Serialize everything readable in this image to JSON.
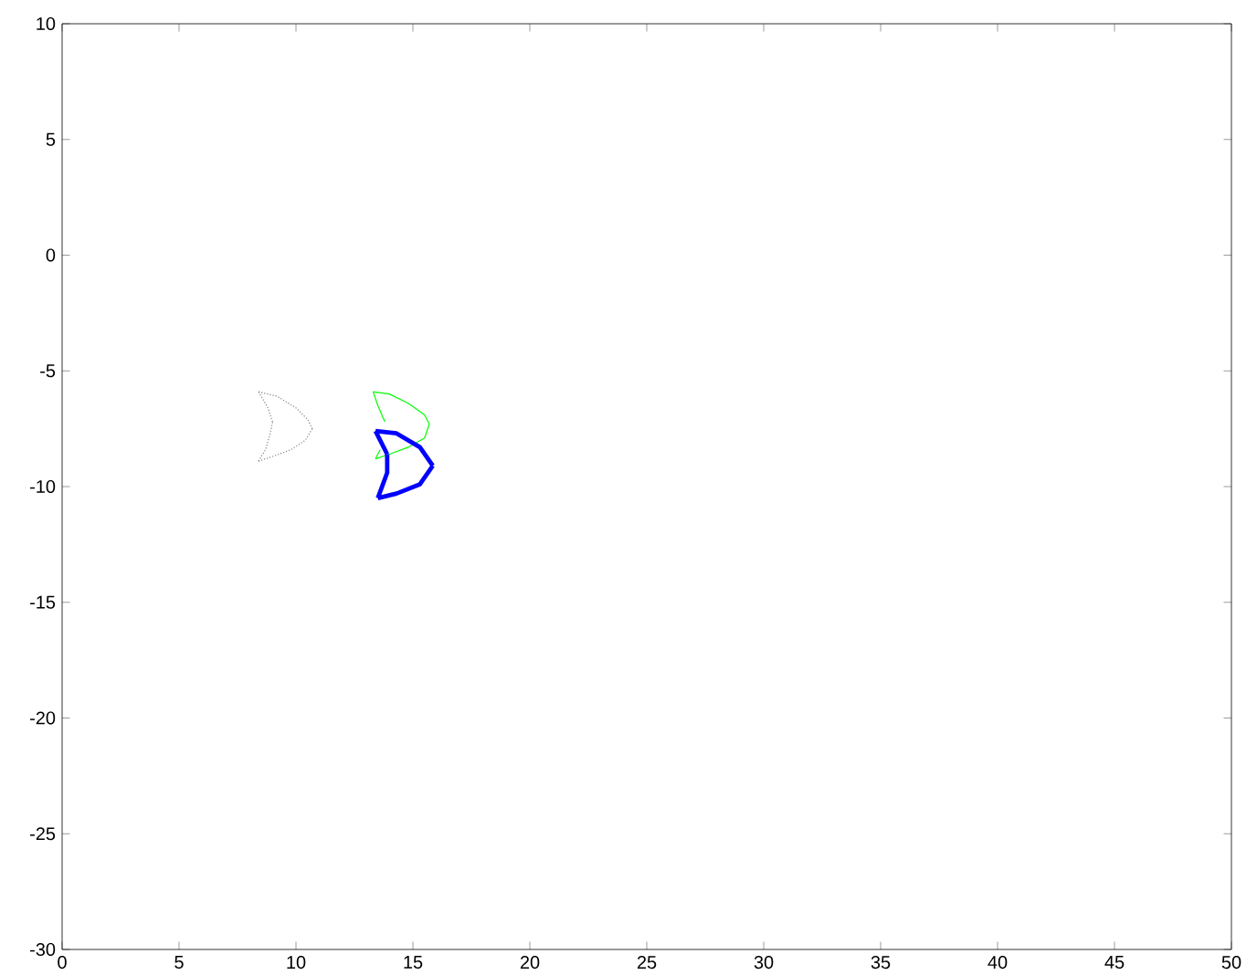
{
  "chart_data": {
    "type": "line",
    "xlim": [
      0,
      50
    ],
    "ylim": [
      -30,
      10
    ],
    "xticks": [
      0,
      5,
      10,
      15,
      20,
      25,
      30,
      35,
      40,
      45,
      50
    ],
    "yticks": [
      -30,
      -25,
      -20,
      -15,
      -10,
      -5,
      0,
      5,
      10
    ],
    "grid": false,
    "marker": "none",
    "series": [
      {
        "color": "#808080",
        "line_style": "dotted",
        "x": [
          8.4,
          9.2,
          10.0,
          10.5,
          10.7
        ],
        "values": [
          -5.9,
          -6.1,
          -6.6,
          -7.1,
          -7.5
        ]
      },
      {
        "color": "#808080",
        "line_style": "dotted",
        "x": [
          10.7,
          10.4,
          9.8,
          9.0,
          8.4
        ],
        "values": [
          -7.5,
          -8.0,
          -8.4,
          -8.7,
          -8.9
        ]
      },
      {
        "color": "#808080",
        "line_style": "dotted",
        "x": [
          8.4,
          8.7,
          8.9,
          9.0
        ],
        "values": [
          -8.9,
          -8.4,
          -7.7,
          -7.2
        ]
      },
      {
        "color": "#808080",
        "line_style": "dotted",
        "x": [
          9.0,
          8.8,
          8.4
        ],
        "values": [
          -7.2,
          -6.6,
          -5.9
        ]
      },
      {
        "color": "#00ff00",
        "line_style": "solid",
        "x": [
          13.3,
          14.0,
          14.8,
          15.5,
          15.7
        ],
        "values": [
          -5.9,
          -6.0,
          -6.4,
          -6.9,
          -7.3
        ]
      },
      {
        "color": "#00ff00",
        "line_style": "solid",
        "x": [
          15.7,
          15.5,
          14.8,
          14.0,
          13.4
        ],
        "values": [
          -7.3,
          -7.9,
          -8.3,
          -8.6,
          -8.8
        ]
      },
      {
        "color": "#00ff00",
        "line_style": "solid",
        "x": [
          13.4,
          13.6
        ],
        "values": [
          -8.8,
          -8.4
        ]
      },
      {
        "color": "#00ff00",
        "line_style": "solid",
        "x": [
          13.8,
          13.5,
          13.3
        ],
        "values": [
          -7.2,
          -6.5,
          -5.9
        ]
      },
      {
        "color": "#0000ff",
        "line_style": "solid",
        "x": [
          13.4,
          14.3,
          15.3,
          15.85
        ],
        "values": [
          -7.6,
          -7.7,
          -8.3,
          -9.1
        ]
      },
      {
        "color": "#0000ff",
        "line_style": "solid",
        "x": [
          15.85,
          15.3,
          14.3,
          13.5
        ],
        "values": [
          -9.1,
          -9.9,
          -10.3,
          -10.5
        ]
      },
      {
        "color": "#0000ff",
        "line_style": "solid",
        "x": [
          13.5,
          13.9,
          13.9
        ],
        "values": [
          -10.5,
          -9.4,
          -8.6
        ]
      },
      {
        "color": "#0000ff",
        "line_style": "solid",
        "x": [
          13.9,
          13.4
        ],
        "values": [
          -8.6,
          -7.6
        ]
      }
    ]
  }
}
